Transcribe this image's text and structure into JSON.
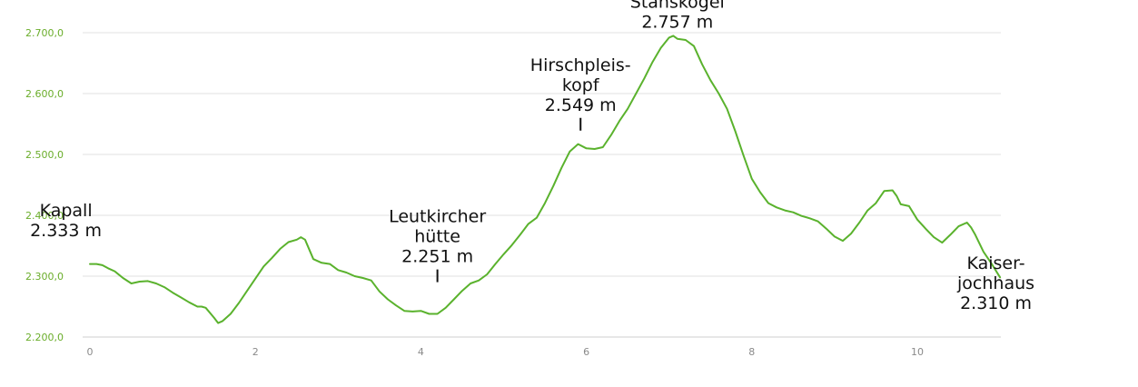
{
  "chart_data": {
    "type": "area",
    "title": "",
    "xlabel": "",
    "ylabel": "",
    "xlim": [
      0,
      11
    ],
    "ylim": [
      2200,
      2700
    ],
    "x_ticks": [
      {
        "value": 0,
        "label": "0"
      },
      {
        "value": 2,
        "label": "2"
      },
      {
        "value": 4,
        "label": "4"
      },
      {
        "value": 6,
        "label": "6"
      },
      {
        "value": 8,
        "label": "8"
      },
      {
        "value": 10,
        "label": "10"
      }
    ],
    "y_ticks": [
      {
        "value": 2200,
        "label": "2.200,0"
      },
      {
        "value": 2300,
        "label": "2.300,0"
      },
      {
        "value": 2400,
        "label": "2.400,0"
      },
      {
        "value": 2500,
        "label": "2.500,0"
      },
      {
        "value": 2600,
        "label": "2.600,0"
      },
      {
        "value": 2700,
        "label": "2.700,0"
      }
    ],
    "grid": true,
    "line_color": "#5ab22d",
    "tick_label_color": "#6aad2a",
    "series": [
      {
        "x": [
          0,
          0.08,
          0.15,
          0.22,
          0.3,
          0.4,
          0.5,
          0.6,
          0.7,
          0.8,
          0.9,
          1.0,
          1.1,
          1.2,
          1.3,
          1.35,
          1.4,
          1.5,
          1.55,
          1.6,
          1.7,
          1.8,
          1.9,
          2.0,
          2.1,
          2.2,
          2.3,
          2.4,
          2.5,
          2.55,
          2.6,
          2.7,
          2.8,
          2.9,
          3.0,
          3.1,
          3.2,
          3.3,
          3.4,
          3.5,
          3.6,
          3.7,
          3.8,
          3.9,
          4.0,
          4.1,
          4.2,
          4.3,
          4.4,
          4.5,
          4.6,
          4.7,
          4.8,
          4.9,
          5.0,
          5.1,
          5.2,
          5.3,
          5.4,
          5.5,
          5.6,
          5.7,
          5.8,
          5.9,
          6.0,
          6.1,
          6.2,
          6.3,
          6.4,
          6.5,
          6.6,
          6.7,
          6.8,
          6.9,
          7.0,
          7.05,
          7.1,
          7.2,
          7.3,
          7.4,
          7.5,
          7.6,
          7.7,
          7.8,
          7.9,
          8.0,
          8.1,
          8.2,
          8.3,
          8.4,
          8.5,
          8.6,
          8.7,
          8.8,
          8.9,
          9.0,
          9.1,
          9.2,
          9.3,
          9.4,
          9.5,
          9.6,
          9.7,
          9.75,
          9.8,
          9.9,
          10.0,
          10.1,
          10.2,
          10.3,
          10.4,
          10.5,
          10.6,
          10.65,
          10.7,
          10.8,
          10.9,
          11.0
        ],
        "values": [
          2320,
          2320,
          2318,
          2313,
          2308,
          2297,
          2288,
          2291,
          2292,
          2288,
          2282,
          2273,
          2265,
          2257,
          2250,
          2250,
          2248,
          2232,
          2223,
          2226,
          2238,
          2256,
          2276,
          2296,
          2316,
          2330,
          2345,
          2356,
          2360,
          2364,
          2360,
          2328,
          2322,
          2320,
          2310,
          2306,
          2300,
          2297,
          2293,
          2275,
          2262,
          2252,
          2243,
          2242,
          2243,
          2238,
          2238,
          2248,
          2262,
          2276,
          2288,
          2293,
          2303,
          2320,
          2336,
          2351,
          2368,
          2386,
          2396,
          2420,
          2448,
          2478,
          2505,
          2517,
          2510,
          2509,
          2512,
          2532,
          2555,
          2575,
          2600,
          2625,
          2652,
          2675,
          2692,
          2695,
          2690,
          2688,
          2678,
          2648,
          2622,
          2600,
          2575,
          2538,
          2498,
          2460,
          2438,
          2420,
          2413,
          2408,
          2405,
          2399,
          2395,
          2390,
          2378,
          2365,
          2358,
          2370,
          2388,
          2408,
          2420,
          2440,
          2441,
          2432,
          2418,
          2415,
          2393,
          2378,
          2364,
          2355,
          2368,
          2382,
          2388,
          2380,
          2368,
          2340,
          2320,
          2298
        ]
      }
    ],
    "annotations": [
      {
        "x": -0.29,
        "y": 2366,
        "lines": [
          "Kapall",
          "2.333 m"
        ],
        "marker": false
      },
      {
        "x": 4.2,
        "y": 2323,
        "lines": [
          "Leutkircher",
          "hütte",
          "2.251 m"
        ],
        "marker": true
      },
      {
        "x": 5.93,
        "y": 2572,
        "lines": [
          "Hirschpleis-",
          "kopf",
          "2.549 m"
        ],
        "marker": true
      },
      {
        "x": 7.1,
        "y": 2708,
        "lines": [
          "Stanskogel",
          "2.757 m"
        ],
        "marker": false
      },
      {
        "x": 10.95,
        "y": 2246,
        "lines": [
          "Kaiser-",
          "jochhaus",
          "2.310 m"
        ],
        "marker": false
      }
    ]
  }
}
